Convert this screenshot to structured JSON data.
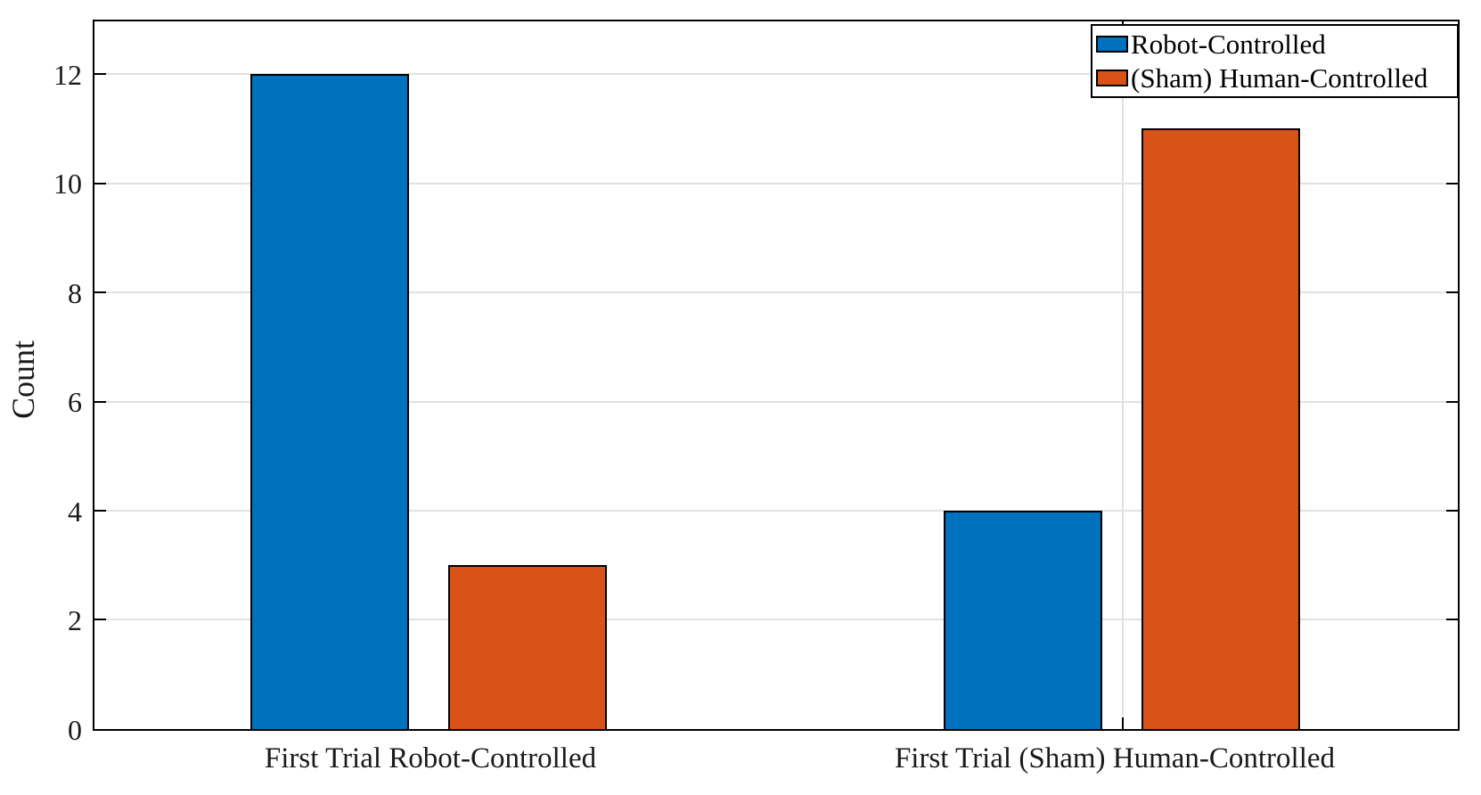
{
  "chart_data": {
    "type": "bar",
    "title": "",
    "xlabel": "",
    "ylabel": "Count",
    "categories": [
      "First Trial Robot-Controlled",
      "First Trial (Sham) Human-Controlled"
    ],
    "series": [
      {
        "name": "Robot-Controlled",
        "color": "#0072BD",
        "values": [
          12,
          4
        ]
      },
      {
        "name": "(Sham) Human-Controlled",
        "color": "#D95319",
        "values": [
          3,
          11
        ]
      }
    ],
    "ylim": [
      0,
      13
    ],
    "yticks": [
      "0",
      "2",
      "4",
      "6",
      "8",
      "10",
      "12"
    ],
    "grid": "on",
    "bar_edge_color": "#000000",
    "grid_color": "#e2e2e2",
    "legend_position": "top-right"
  }
}
